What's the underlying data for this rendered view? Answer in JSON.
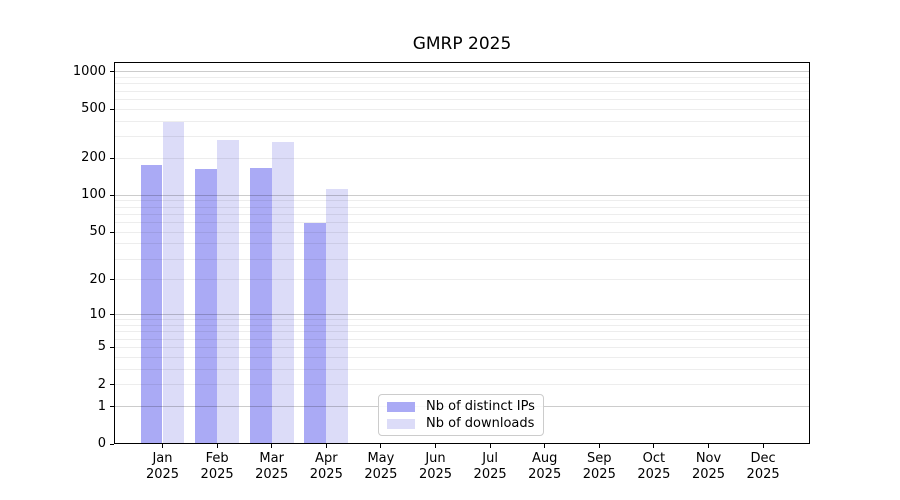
{
  "chart_data": {
    "type": "bar",
    "title": "GMRP 2025",
    "categories": [
      "Jan 2025",
      "Feb 2025",
      "Mar 2025",
      "Apr 2025",
      "May 2025",
      "Jun 2025",
      "Jul 2025",
      "Aug 2025",
      "Sep 2025",
      "Oct 2025",
      "Nov 2025",
      "Dec 2025"
    ],
    "series": [
      {
        "name": "Nb of distinct IPs",
        "color": "#aaaaf5",
        "values": [
          178,
          164,
          166,
          60,
          null,
          null,
          null,
          null,
          null,
          null,
          null,
          null
        ]
      },
      {
        "name": "Nb of downloads",
        "color": "#dcdcf8",
        "values": [
          395,
          283,
          272,
          113,
          null,
          null,
          null,
          null,
          null,
          null,
          null,
          null
        ]
      }
    ],
    "y_axis": {
      "scale": "log1p",
      "tick_values": [
        0,
        1,
        2,
        5,
        10,
        20,
        50,
        100,
        200,
        500,
        1000
      ],
      "tick_labels": [
        "0",
        "1",
        "2",
        "5",
        "10",
        "20",
        "50",
        "100",
        "200",
        "500",
        "1000"
      ],
      "ylim": [
        0,
        1200
      ]
    },
    "x_axis": {
      "tick_labels_line2": "2025"
    },
    "grid": {
      "major": true,
      "minor": true,
      "major_at": [
        1,
        10,
        100,
        1000
      ]
    },
    "legend": {
      "position": "inside lower-center-left"
    }
  }
}
